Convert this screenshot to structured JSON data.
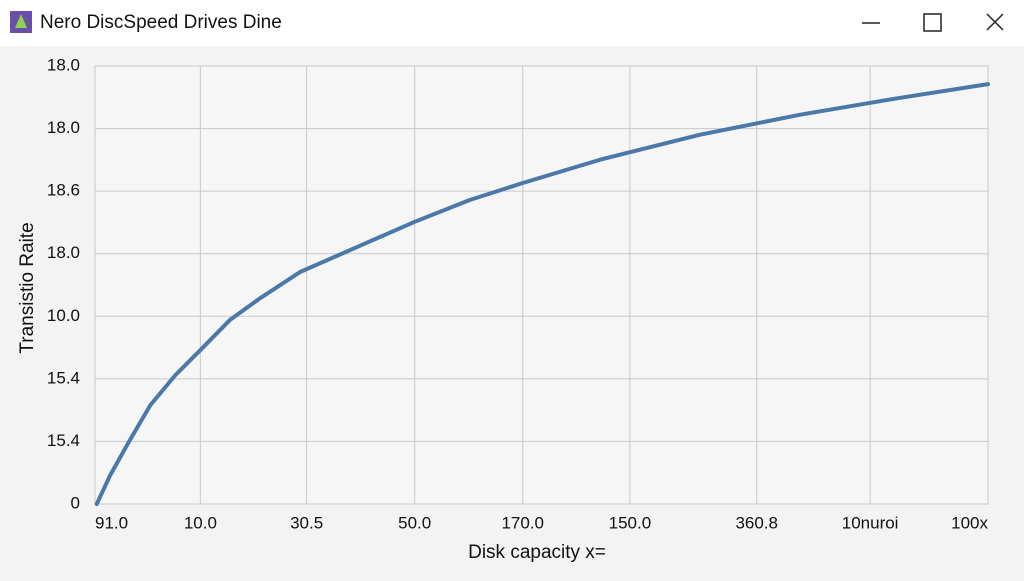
{
  "window": {
    "title": "Nero DiscSpeed Drives Dine"
  },
  "chart_data": {
    "type": "line",
    "ylabel": "Transistio Raite",
    "xlabel": "Disk capacity x=",
    "xlim": [
      0,
      100
    ],
    "ylim": [
      0,
      7
    ],
    "xticks": [
      {
        "value": 0,
        "label": "91.0"
      },
      {
        "value": 11.8,
        "label": "10.0"
      },
      {
        "value": 23.7,
        "label": "30.5"
      },
      {
        "value": 35.8,
        "label": "50.0"
      },
      {
        "value": 47.9,
        "label": "170.0"
      },
      {
        "value": 59.9,
        "label": "150.0"
      },
      {
        "value": 74.1,
        "label": "360.8"
      },
      {
        "value": 86.8,
        "label": "10nuroi"
      },
      {
        "value": 100,
        "label": "100x"
      }
    ],
    "yticks": [
      {
        "value": 0,
        "label": "0"
      },
      {
        "value": 1,
        "label": "15.4"
      },
      {
        "value": 2,
        "label": "15.4"
      },
      {
        "value": 3,
        "label": "10.0"
      },
      {
        "value": 4,
        "label": "18.0"
      },
      {
        "value": 5,
        "label": "18.6"
      },
      {
        "value": 6,
        "label": "18.0"
      },
      {
        "value": 7,
        "label": "18.0"
      }
    ],
    "grid": true,
    "x": [
      0.2,
      1.7,
      3.9,
      6.2,
      9.0,
      11.8,
      15.1,
      18.5,
      23.0,
      28.6,
      35.8,
      42.0,
      47.9,
      56.5,
      67.7,
      78.9,
      90.1,
      100
    ],
    "series": [
      {
        "color": "#4a78a8",
        "values": [
          0,
          0.46,
          1.02,
          1.58,
          2.06,
          2.46,
          2.94,
          3.29,
          3.71,
          4.06,
          4.51,
          4.86,
          5.13,
          5.5,
          5.9,
          6.22,
          6.49,
          6.71
        ]
      }
    ]
  }
}
